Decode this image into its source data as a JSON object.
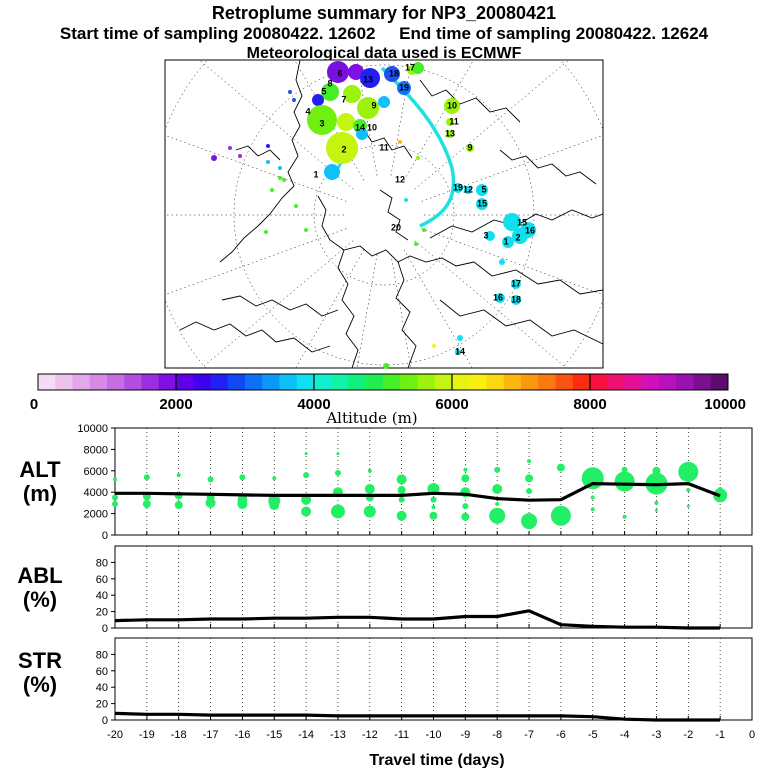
{
  "header": {
    "title": "Retroplume summary for NP3_20080421",
    "start_time": "Start time of sampling 20080422. 12602",
    "end_time": "End time of sampling 20080422. 12624",
    "met_data": "Meteorological data used is ECMWF"
  },
  "colors": {
    "track": "#1ee0e0",
    "dots": "#22ee66",
    "line": "#000000"
  },
  "map": {
    "labels": [
      "1",
      "2",
      "3",
      "4",
      "5",
      "6",
      "7",
      "8",
      "9",
      "10",
      "11",
      "12",
      "13",
      "14",
      "15",
      "16",
      "17",
      "18",
      "19",
      "20"
    ]
  },
  "colorbar": {
    "title": "Altitude (m)",
    "ticks": [
      "0",
      "2000",
      "4000",
      "6000",
      "8000",
      "10000"
    ],
    "range": [
      0,
      10000
    ],
    "colors": [
      "#f4dcf4",
      "#ecc4ee",
      "#e2a8ea",
      "#d68ae6",
      "#c86ce2",
      "#b24ee0",
      "#9a2ee0",
      "#8010e4",
      "#6000ea",
      "#3e00f0",
      "#2020f4",
      "#1048f6",
      "#0c70f8",
      "#0c98fa",
      "#0cc0f8",
      "#10e0ee",
      "#10f0d0",
      "#10f4a8",
      "#10f07c",
      "#20ee50",
      "#46ee28",
      "#70f010",
      "#9cf20c",
      "#c4f410",
      "#e8f410",
      "#faf010",
      "#fcd810",
      "#fcb810",
      "#fc9810",
      "#fc7810",
      "#fc5410",
      "#fc2c10",
      "#fa1040",
      "#f01070",
      "#e4109a",
      "#d010b8",
      "#b810c0",
      "#9a10b0",
      "#7a1090",
      "#5c0c6c"
    ]
  },
  "chart_data": [
    {
      "type": "line",
      "name": "ALT",
      "ylabel": "ALT (m)",
      "ylabel_line1": "ALT",
      "ylabel_line2": "(m)",
      "ylim": [
        0,
        10000
      ],
      "yticks": [
        "0",
        "2000",
        "4000",
        "6000",
        "8000",
        "10000"
      ],
      "x": [
        -20,
        -19,
        -18,
        -17,
        -16,
        -15,
        -14,
        -13,
        -12,
        -11,
        -10,
        -9,
        -8,
        -7,
        -6,
        -5,
        -4,
        -3,
        -2,
        -1
      ],
      "values": [
        3900,
        3900,
        3850,
        3800,
        3750,
        3700,
        3700,
        3700,
        3700,
        3700,
        3900,
        3800,
        3400,
        3250,
        3300,
        4800,
        4750,
        4700,
        4800,
        3650
      ],
      "dots": [
        {
          "x": -20,
          "y": 3500,
          "s": 3
        },
        {
          "x": -20,
          "y": 2900,
          "s": 3
        },
        {
          "x": -20,
          "y": 5200,
          "s": 2
        },
        {
          "x": -19,
          "y": 3600,
          "s": 4
        },
        {
          "x": -19,
          "y": 2900,
          "s": 4
        },
        {
          "x": -19,
          "y": 5400,
          "s": 3
        },
        {
          "x": -18,
          "y": 3700,
          "s": 4
        },
        {
          "x": -18,
          "y": 2800,
          "s": 4
        },
        {
          "x": -18,
          "y": 5600,
          "s": 2
        },
        {
          "x": -17,
          "y": 3500,
          "s": 4
        },
        {
          "x": -17,
          "y": 3000,
          "s": 5
        },
        {
          "x": -17,
          "y": 5200,
          "s": 3
        },
        {
          "x": -16,
          "y": 3300,
          "s": 5
        },
        {
          "x": -16,
          "y": 2900,
          "s": 5
        },
        {
          "x": -16,
          "y": 5400,
          "s": 3
        },
        {
          "x": -15,
          "y": 3200,
          "s": 6
        },
        {
          "x": -15,
          "y": 2800,
          "s": 5
        },
        {
          "x": -15,
          "y": 5300,
          "s": 2
        },
        {
          "x": -14,
          "y": 3300,
          "s": 5
        },
        {
          "x": -14,
          "y": 2200,
          "s": 5
        },
        {
          "x": -14,
          "y": 5600,
          "s": 3
        },
        {
          "x": -14,
          "y": 7600,
          "s": 1.5
        },
        {
          "x": -13,
          "y": 4000,
          "s": 5
        },
        {
          "x": -13,
          "y": 2200,
          "s": 7
        },
        {
          "x": -13,
          "y": 5800,
          "s": 3
        },
        {
          "x": -13,
          "y": 7600,
          "s": 1.5
        },
        {
          "x": -12,
          "y": 4300,
          "s": 5
        },
        {
          "x": -12,
          "y": 2200,
          "s": 6
        },
        {
          "x": -12,
          "y": 3500,
          "s": 4
        },
        {
          "x": -12,
          "y": 6000,
          "s": 2
        },
        {
          "x": -11,
          "y": 5200,
          "s": 5
        },
        {
          "x": -11,
          "y": 4200,
          "s": 4
        },
        {
          "x": -11,
          "y": 1800,
          "s": 5
        },
        {
          "x": -11,
          "y": 3300,
          "s": 3
        },
        {
          "x": -10,
          "y": 4300,
          "s": 6
        },
        {
          "x": -10,
          "y": 1800,
          "s": 4
        },
        {
          "x": -10,
          "y": 3300,
          "s": 3
        },
        {
          "x": -10,
          "y": 2600,
          "s": 2
        },
        {
          "x": -9,
          "y": 4000,
          "s": 5
        },
        {
          "x": -9,
          "y": 5300,
          "s": 4
        },
        {
          "x": -9,
          "y": 1700,
          "s": 4
        },
        {
          "x": -9,
          "y": 2700,
          "s": 3
        },
        {
          "x": -9,
          "y": 6100,
          "s": 2
        },
        {
          "x": -8,
          "y": 1800,
          "s": 8
        },
        {
          "x": -8,
          "y": 4300,
          "s": 5
        },
        {
          "x": -8,
          "y": 6100,
          "s": 3
        },
        {
          "x": -8,
          "y": 2900,
          "s": 2
        },
        {
          "x": -7,
          "y": 1300,
          "s": 8
        },
        {
          "x": -7,
          "y": 5300,
          "s": 4
        },
        {
          "x": -7,
          "y": 4100,
          "s": 3
        },
        {
          "x": -7,
          "y": 6900,
          "s": 2
        },
        {
          "x": -6,
          "y": 1800,
          "s": 10
        },
        {
          "x": -6,
          "y": 6300,
          "s": 4
        },
        {
          "x": -5,
          "y": 5300,
          "s": 11
        },
        {
          "x": -5,
          "y": 2400,
          "s": 2
        },
        {
          "x": -5,
          "y": 3500,
          "s": 2
        },
        {
          "x": -4,
          "y": 5000,
          "s": 10
        },
        {
          "x": -4,
          "y": 6100,
          "s": 3
        },
        {
          "x": -4,
          "y": 1700,
          "s": 2
        },
        {
          "x": -3,
          "y": 4800,
          "s": 11
        },
        {
          "x": -3,
          "y": 6000,
          "s": 4
        },
        {
          "x": -3,
          "y": 3000,
          "s": 2
        },
        {
          "x": -3,
          "y": 2300,
          "s": 1.5
        },
        {
          "x": -2,
          "y": 5900,
          "s": 10
        },
        {
          "x": -2,
          "y": 4200,
          "s": 2
        },
        {
          "x": -2,
          "y": 2700,
          "s": 1.5
        },
        {
          "x": -1,
          "y": 3700,
          "s": 7
        },
        {
          "x": -1,
          "y": 4200,
          "s": 3
        }
      ]
    },
    {
      "type": "line",
      "name": "ABL",
      "ylabel": "ABL (%)",
      "ylabel_line1": "ABL",
      "ylabel_line2": "(%)",
      "ylim": [
        0,
        100
      ],
      "yticks": [
        "0",
        "20",
        "40",
        "60",
        "80"
      ],
      "x": [
        -20,
        -19,
        -18,
        -17,
        -16,
        -15,
        -14,
        -13,
        -12,
        -11,
        -10,
        -9,
        -8,
        -7,
        -6,
        -5,
        -4,
        -3,
        -2,
        -1
      ],
      "values": [
        9,
        10,
        10,
        11,
        11,
        12,
        12,
        13,
        13,
        11,
        11,
        14,
        14,
        21,
        4,
        2,
        1,
        1,
        0,
        0
      ]
    },
    {
      "type": "line",
      "name": "STR",
      "ylabel": "STR (%)",
      "ylabel_line1": "STR",
      "ylabel_line2": "(%)",
      "xlabel": "Travel time (days)",
      "ylim": [
        0,
        100
      ],
      "xlim": [
        -20,
        0
      ],
      "yticks": [
        "0",
        "20",
        "40",
        "60",
        "80"
      ],
      "xticks": [
        "-20",
        "-19",
        "-18",
        "-17",
        "-16",
        "-15",
        "-14",
        "-13",
        "-12",
        "-11",
        "-10",
        "-9",
        "-8",
        "-7",
        "-6",
        "-5",
        "-4",
        "-3",
        "-2",
        "-1",
        "0"
      ],
      "x": [
        -20,
        -19,
        -18,
        -17,
        -16,
        -15,
        -14,
        -13,
        -12,
        -11,
        -10,
        -9,
        -8,
        -7,
        -6,
        -5,
        -4,
        -3,
        -2,
        -1
      ],
      "values": [
        8,
        7,
        7,
        6,
        6,
        6,
        6,
        5,
        5,
        5,
        5,
        5,
        5,
        5,
        5,
        4,
        1,
        0,
        0,
        0
      ]
    }
  ]
}
